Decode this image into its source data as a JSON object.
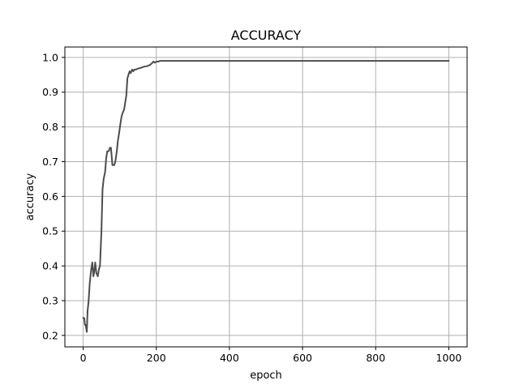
{
  "chart_data": {
    "type": "line",
    "title": "ACCURACY",
    "xlabel": "epoch",
    "ylabel": "accuracy",
    "xlim": [
      -50,
      1050
    ],
    "ylim": [
      0.167,
      1.03
    ],
    "xticks": [
      0,
      200,
      400,
      600,
      800,
      1000
    ],
    "yticks": [
      0.2,
      0.3,
      0.4,
      0.5,
      0.6,
      0.7,
      0.8,
      0.9,
      1.0
    ],
    "xtick_labels": [
      "0",
      "200",
      "400",
      "600",
      "800",
      "1000"
    ],
    "ytick_labels": [
      "0.2",
      "0.3",
      "0.4",
      "0.5",
      "0.6",
      "0.7",
      "0.8",
      "0.9",
      "1.0"
    ],
    "grid": true,
    "colors": {
      "series": "#4d4d4d",
      "grid": "#b0b0b0"
    },
    "series": [
      {
        "x": [
          0,
          3,
          5,
          7,
          10,
          12,
          15,
          18,
          22,
          25,
          28,
          30,
          33,
          36,
          40,
          43,
          46,
          50,
          53,
          56,
          60,
          63,
          66,
          70,
          73,
          76,
          80,
          82,
          85,
          88,
          92,
          95,
          98,
          102,
          105,
          108,
          112,
          115,
          118,
          121,
          124,
          127,
          130,
          134,
          137,
          140,
          144,
          150,
          158,
          165,
          175,
          182,
          188,
          192,
          196,
          200,
          205,
          210,
          215,
          220,
          230,
          300,
          500,
          700,
          1000
        ],
        "y": [
          0.25,
          0.25,
          0.23,
          0.23,
          0.21,
          0.27,
          0.3,
          0.35,
          0.39,
          0.41,
          0.37,
          0.38,
          0.41,
          0.38,
          0.37,
          0.39,
          0.4,
          0.5,
          0.62,
          0.65,
          0.67,
          0.71,
          0.73,
          0.73,
          0.74,
          0.74,
          0.69,
          0.69,
          0.69,
          0.7,
          0.73,
          0.76,
          0.78,
          0.81,
          0.83,
          0.84,
          0.85,
          0.87,
          0.89,
          0.94,
          0.95,
          0.96,
          0.955,
          0.965,
          0.96,
          0.965,
          0.965,
          0.968,
          0.97,
          0.973,
          0.975,
          0.978,
          0.983,
          0.988,
          0.985,
          0.988,
          0.988,
          0.99,
          0.99,
          0.99,
          0.99,
          0.99,
          0.99,
          0.99,
          0.99
        ]
      }
    ]
  }
}
